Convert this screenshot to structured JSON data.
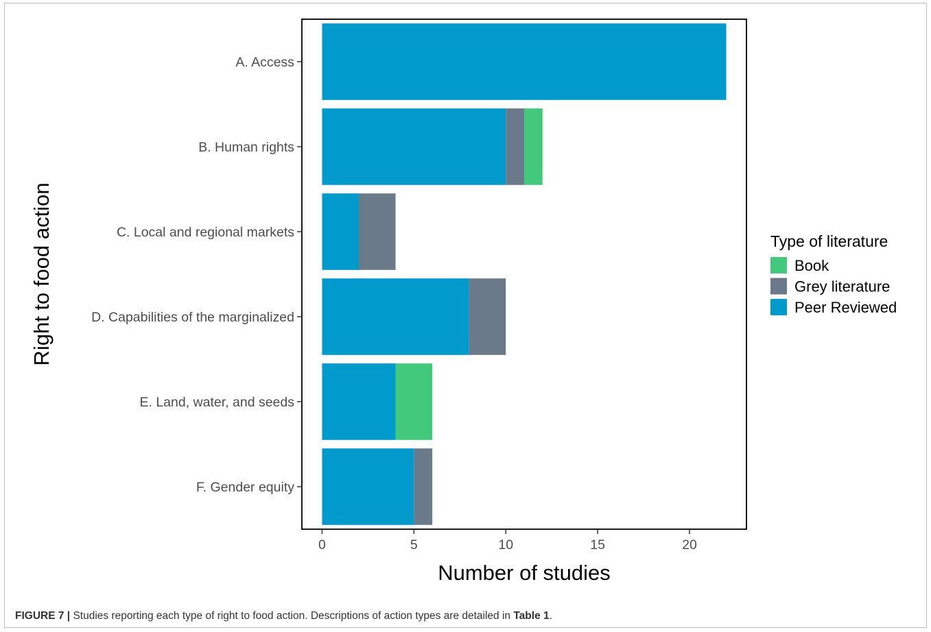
{
  "chart_data": {
    "type": "bar",
    "orientation": "horizontal",
    "stacked": true,
    "title": "",
    "xlabel": "Number of studies",
    "ylabel": "Right to food action",
    "xlim": [
      -1.1,
      23.1
    ],
    "xticks": [
      0,
      5,
      10,
      15,
      20
    ],
    "grid": false,
    "legend": {
      "title": "Type of literature",
      "position": "right"
    },
    "categories": [
      "A. Access",
      "B. Human rights",
      "C. Local and regional markets",
      "D. Capabilities of the marginalized",
      "E. Land, water, and seeds",
      "F. Gender equity"
    ],
    "series": [
      {
        "name": "Peer Reviewed",
        "color": "#009acd",
        "values": [
          22,
          10,
          2,
          8,
          4,
          5
        ]
      },
      {
        "name": "Grey literature",
        "color": "#6a7a8a",
        "values": [
          0,
          1,
          2,
          2,
          0,
          1
        ]
      },
      {
        "name": "Book",
        "color": "#43c97b",
        "values": [
          0,
          1,
          0,
          0,
          2,
          0
        ]
      }
    ],
    "legend_order": [
      "Book",
      "Grey literature",
      "Peer Reviewed"
    ]
  },
  "caption": {
    "label": "FIGURE 7 |",
    "text_before": " Studies reporting each type of right to food action. Descriptions of action types are detailed in ",
    "bold_ref": "Table 1",
    "text_after": "."
  }
}
